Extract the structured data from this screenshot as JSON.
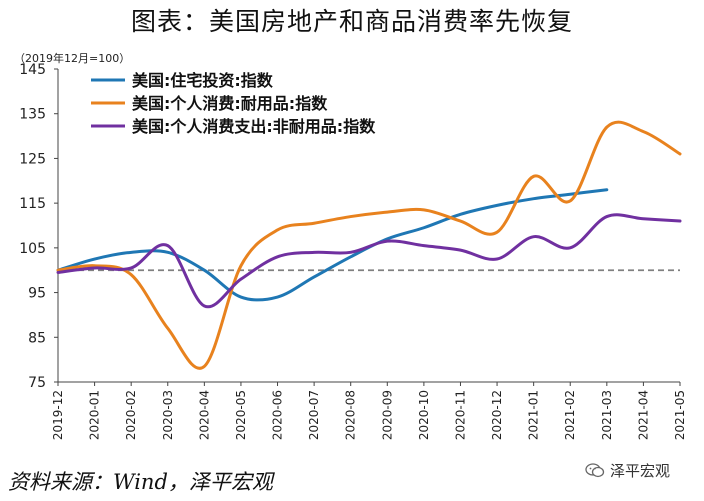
{
  "title": "图表：美国房地产和商品消费率先恢复",
  "source": "资料来源：Wind，泽平宏观",
  "watermark": "泽平宏观",
  "chart_data": {
    "type": "line",
    "unit_note": "（2019年12月=100）",
    "categories": [
      "2019-12",
      "2020-01",
      "2020-02",
      "2020-03",
      "2020-04",
      "2020-05",
      "2020-06",
      "2020-07",
      "2020-08",
      "2020-09",
      "2020-10",
      "2020-11",
      "2020-12",
      "2021-01",
      "2021-02",
      "2021-03",
      "2021-04",
      "2021-05"
    ],
    "ylim": [
      75,
      145
    ],
    "yticks": [
      75,
      85,
      95,
      105,
      115,
      125,
      135,
      145
    ],
    "grid": false,
    "reference_line": {
      "value": 100,
      "style": "dashed",
      "color": "#808080"
    },
    "legend_position": "top-left",
    "series": [
      {
        "name": "美国:住宅投资:指数",
        "color": "#1f77b4",
        "values": [
          100,
          102.5,
          104,
          104,
          100,
          94,
          94,
          98.5,
          103,
          107,
          109.5,
          112.5,
          114.5,
          116,
          117,
          118,
          null,
          null
        ]
      },
      {
        "name": "美国:个人消费:耐用品:指数",
        "color": "#e8821e",
        "values": [
          100,
          101,
          99,
          87,
          78.5,
          101,
          109,
          110.5,
          112,
          113,
          113.5,
          111,
          108.5,
          121,
          115.5,
          132,
          131,
          126
        ]
      },
      {
        "name": "美国:个人消费支出:非耐用品:指数",
        "color": "#7030a0",
        "values": [
          99.5,
          100.5,
          100.5,
          105.5,
          92,
          98,
          103,
          104,
          104,
          106.5,
          105.5,
          104.5,
          102.5,
          107.5,
          105,
          112,
          111.5,
          111
        ]
      }
    ]
  }
}
